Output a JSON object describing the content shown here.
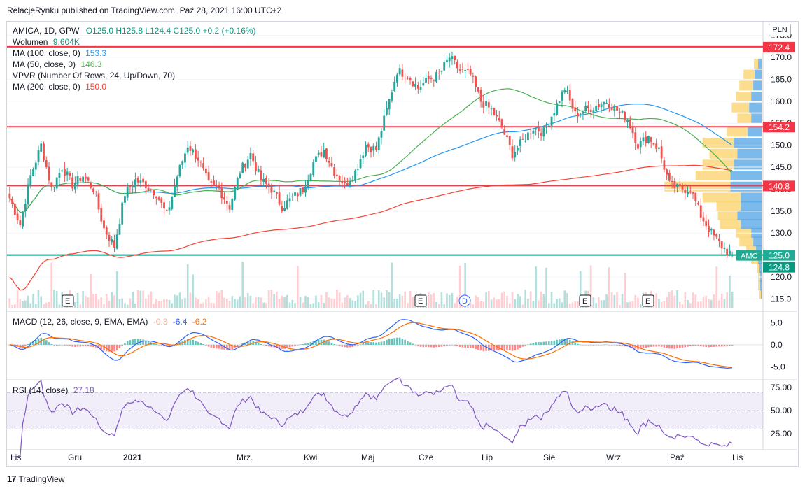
{
  "header": {
    "publisher": "RelacjeRynku published on TradingView.com, Paź 28, 2021 16:00 UTC+2"
  },
  "currency": "PLN",
  "legend": {
    "symbol": "AMICA, 1D, GPW",
    "ohlc": "O125.0  H125.8  L124.4  C125.0  +0.2 (+0.16%)",
    "volume_label": "Wolumen",
    "volume_value": "9.604K",
    "ma100_label": "MA (100, close, 0)",
    "ma100_value": "153.3",
    "ma50_label": "MA (50, close, 0)",
    "ma50_value": "146.3",
    "vpvr_label": "VPVR (Number Of Rows, 24, Up/Down, 70)",
    "ma200_label": "MA (200, close, 0)",
    "ma200_value": "150.0",
    "macd_label": "MACD (12, 26, close, 9, EMA, EMA)",
    "macd_v1": "-0.3",
    "macd_v2": "-6.4",
    "macd_v3": "-6.2",
    "rsi_label": "RSI (14, close)",
    "rsi_value": "27.18"
  },
  "footer": {
    "brand": "TradingView"
  },
  "colors": {
    "up": "#26a69a",
    "down": "#ef5350",
    "ma50": "#4caf50",
    "ma100": "#2196f3",
    "ma200": "#f44336",
    "macd": "#2962ff",
    "signal": "#ff6d00",
    "rsi": "#7e57c2",
    "vp_up": "#fcd77a",
    "vp_down": "#5aa9e6"
  },
  "chart_data": [
    {
      "type": "candlestick",
      "name": "price",
      "ylim": [
        113,
        177
      ],
      "y_ticks": [
        "115.0",
        "120.0",
        "125.0",
        "130.0",
        "135.0",
        "140.0",
        "145.0",
        "150.0",
        "155.0",
        "160.0",
        "165.0",
        "170.0",
        "175.0"
      ],
      "x_ticks": [
        "Lis",
        "Gru",
        "2021",
        "Mrz.",
        "Kwi",
        "Maj",
        "Cze",
        "Lip",
        "Sie",
        "Wrz",
        "Paź",
        "Lis"
      ],
      "anchors": [
        [
          0,
          138
        ],
        [
          4,
          132
        ],
        [
          8,
          143
        ],
        [
          12,
          150
        ],
        [
          16,
          140
        ],
        [
          20,
          145
        ],
        [
          24,
          141
        ],
        [
          28,
          143
        ],
        [
          32,
          140
        ],
        [
          36,
          131
        ],
        [
          40,
          127
        ],
        [
          44,
          139
        ],
        [
          48,
          142
        ],
        [
          52,
          141
        ],
        [
          56,
          139
        ],
        [
          60,
          134
        ],
        [
          64,
          143
        ],
        [
          68,
          150
        ],
        [
          72,
          147
        ],
        [
          76,
          141
        ],
        [
          80,
          140
        ],
        [
          84,
          136
        ],
        [
          88,
          144
        ],
        [
          92,
          148
        ],
        [
          96,
          142
        ],
        [
          100,
          140
        ],
        [
          104,
          136
        ],
        [
          108,
          138
        ],
        [
          112,
          140
        ],
        [
          116,
          146
        ],
        [
          120,
          149
        ],
        [
          124,
          144
        ],
        [
          128,
          141
        ],
        [
          132,
          144
        ],
        [
          136,
          150
        ],
        [
          140,
          149
        ],
        [
          144,
          158
        ],
        [
          148,
          167
        ],
        [
          152,
          166
        ],
        [
          156,
          163
        ],
        [
          160,
          165
        ],
        [
          164,
          166
        ],
        [
          168,
          170
        ],
        [
          172,
          167
        ],
        [
          176,
          166
        ],
        [
          180,
          160
        ],
        [
          184,
          158
        ],
        [
          188,
          154
        ],
        [
          192,
          148
        ],
        [
          196,
          151
        ],
        [
          200,
          154
        ],
        [
          204,
          153
        ],
        [
          208,
          158
        ],
        [
          212,
          163
        ],
        [
          216,
          157
        ],
        [
          220,
          158
        ],
        [
          224,
          159
        ],
        [
          228,
          160
        ],
        [
          232,
          158
        ],
        [
          236,
          156
        ],
        [
          240,
          150
        ],
        [
          244,
          152
        ],
        [
          248,
          149
        ],
        [
          252,
          141
        ],
        [
          256,
          140
        ],
        [
          260,
          140
        ],
        [
          264,
          134
        ],
        [
          268,
          130
        ],
        [
          272,
          127
        ],
        [
          276,
          125
        ]
      ],
      "ohlc_last": {
        "open": 125.0,
        "high": 125.8,
        "low": 124.4,
        "close": 125.0
      },
      "price_labels": [
        {
          "value": "172.4",
          "color": "#f23645"
        },
        {
          "value": "154.2",
          "color": "#f23645"
        },
        {
          "value": "140.8",
          "color": "#f23645"
        },
        {
          "value": "125.0",
          "color": "#22ab94"
        },
        {
          "value": "124.8",
          "color": "#089981"
        }
      ],
      "symbol_tag": "AMC",
      "horizontal_lines": [
        172.4,
        154.2,
        140.8,
        125.0
      ],
      "earnings_markers": [
        "E",
        "E",
        "E",
        "E"
      ],
      "dividend_markers": [
        "D"
      ],
      "volume_profile": [
        [
          116,
          0.02,
          0.01
        ],
        [
          118,
          0.03,
          0.02
        ],
        [
          120,
          0.03,
          0.02
        ],
        [
          122,
          0.04,
          0.03
        ],
        [
          124,
          0.1,
          0.05
        ],
        [
          126,
          0.14,
          0.08
        ],
        [
          128,
          0.2,
          0.12
        ],
        [
          130,
          0.22,
          0.15
        ],
        [
          132,
          0.3,
          0.3
        ],
        [
          134,
          0.28,
          0.35
        ],
        [
          136,
          0.35,
          0.3
        ],
        [
          138,
          0.55,
          0.3
        ],
        [
          140.5,
          0.95,
          0.45
        ],
        [
          143,
          0.5,
          0.45
        ],
        [
          145.5,
          0.45,
          0.4
        ],
        [
          148,
          0.4,
          0.35
        ],
        [
          150.5,
          0.45,
          0.4
        ],
        [
          153,
          0.3,
          0.2
        ],
        [
          156,
          0.2,
          0.15
        ],
        [
          158.5,
          0.25,
          0.18
        ],
        [
          161,
          0.22,
          0.15
        ],
        [
          163.5,
          0.2,
          0.12
        ],
        [
          166,
          0.16,
          0.1
        ],
        [
          168.5,
          0.06,
          0.05
        ]
      ]
    },
    {
      "type": "line",
      "name": "macd",
      "ylim": [
        -7.5,
        7.0
      ],
      "y_ticks": [
        "5.0",
        "0.0",
        "-5.0"
      ]
    },
    {
      "type": "line",
      "name": "rsi",
      "ylim": [
        10,
        82
      ],
      "y_ticks": [
        "75.00",
        "50.00",
        "25.00"
      ],
      "bands": [
        70,
        50,
        30
      ]
    }
  ]
}
